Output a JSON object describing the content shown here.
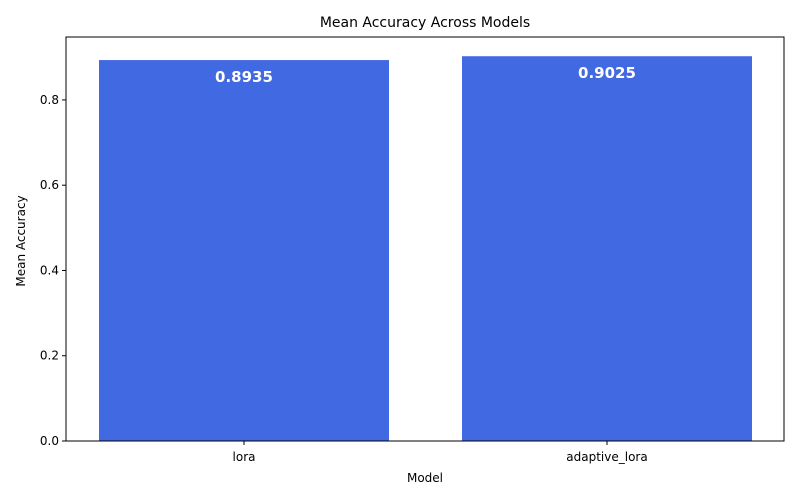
{
  "chart_data": {
    "type": "bar",
    "title": "Mean Accuracy Across Models",
    "xlabel": "Model",
    "ylabel": "Mean Accuracy",
    "categories": [
      "lora",
      "adaptive_lora"
    ],
    "values": [
      0.8935,
      0.9025
    ],
    "value_labels": [
      "0.8935",
      "0.9025"
    ],
    "ylim": [
      0,
      0.9476
    ],
    "yticks": [
      0.0,
      0.2,
      0.4,
      0.6,
      0.8
    ],
    "ytick_labels": [
      "0.0",
      "0.2",
      "0.4",
      "0.6",
      "0.8"
    ],
    "grid": false,
    "legend": "none",
    "bar_color": "#4169e1",
    "value_label_color": "#ffffff"
  }
}
